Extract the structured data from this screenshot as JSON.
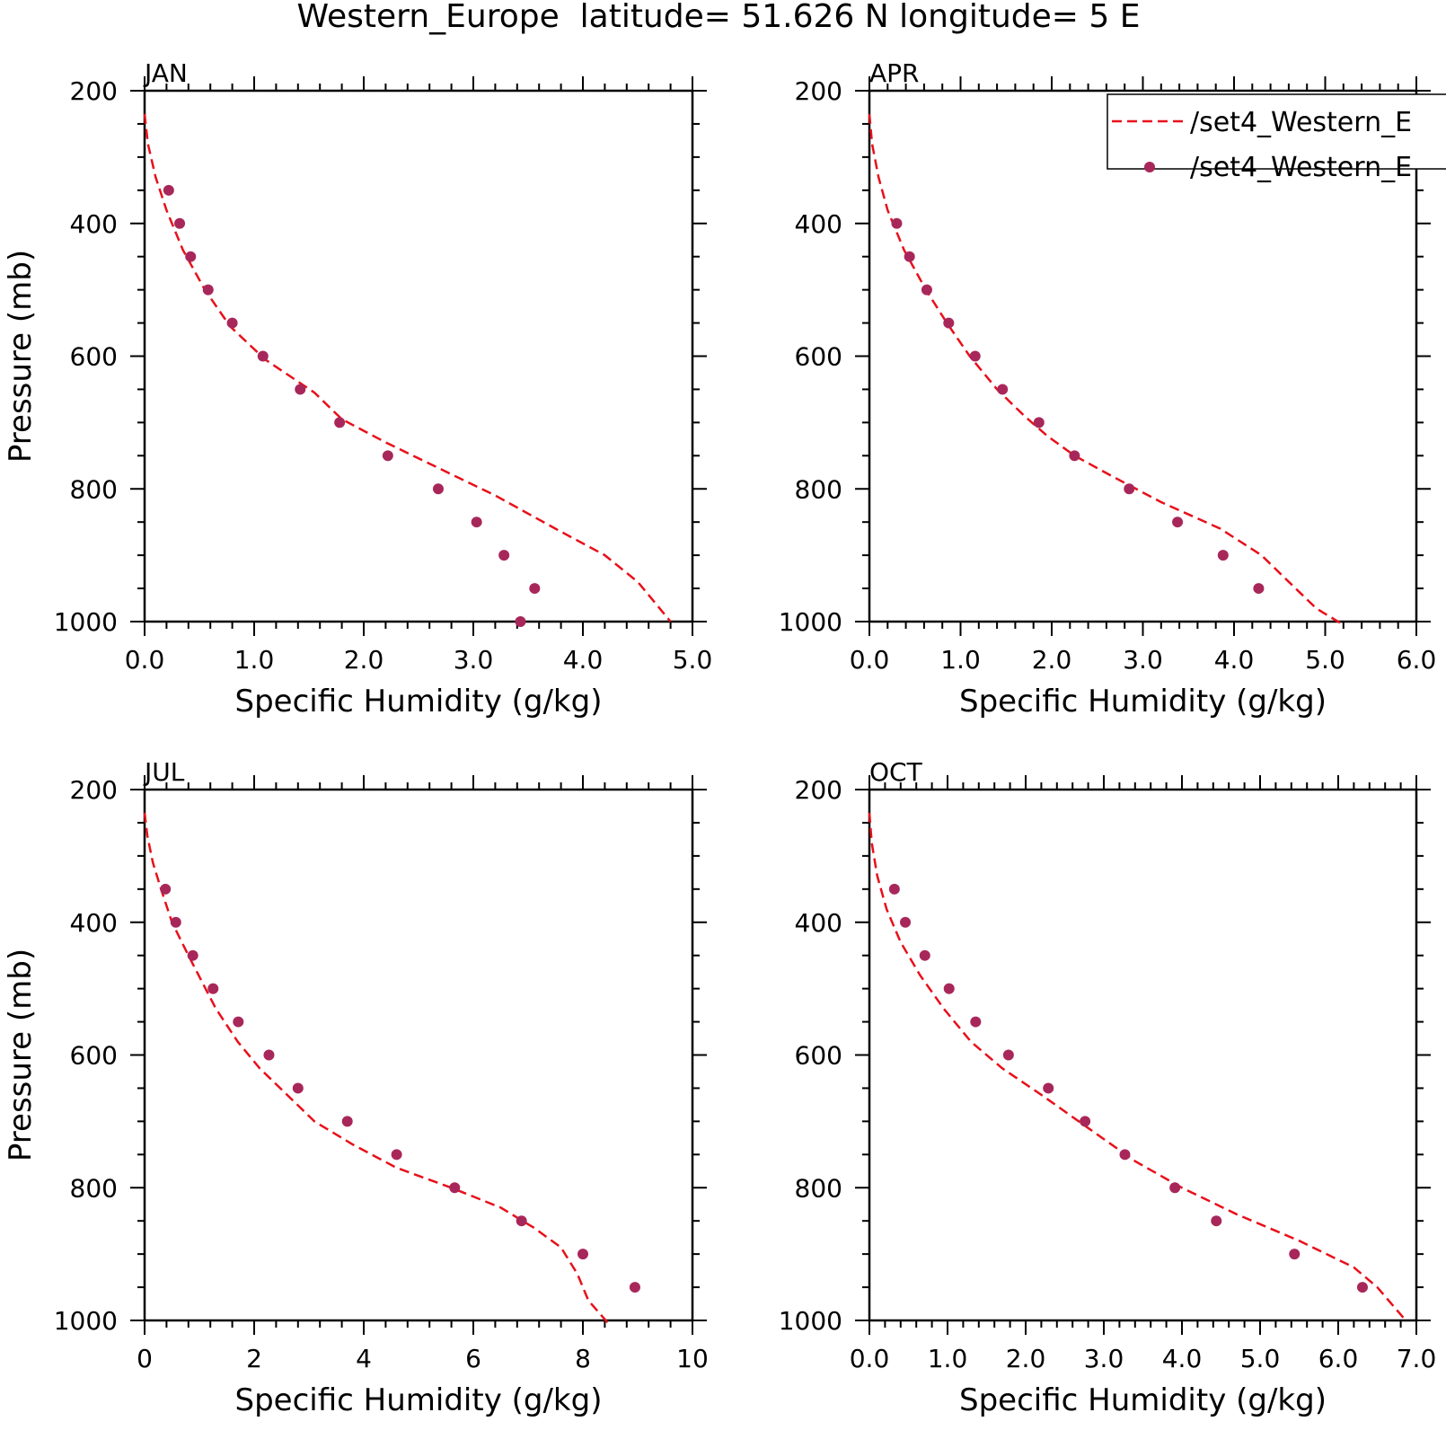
{
  "figure": {
    "title": "Western_Europe  latitude= 51.626 N longitude= 5 E"
  },
  "style": {
    "model_color": "#e8101a",
    "obs_color": "#a8275a"
  },
  "legend": {
    "entries": [
      "/set4_Western_E",
      "/set4_Western_E"
    ]
  },
  "chart_data": [
    {
      "type": "line",
      "label": "JAN",
      "xlabel": "Specific Humidity (g/kg)",
      "ylabel": "Pressure (mb)",
      "xlim": [
        0,
        5
      ],
      "ylim": [
        200,
        1000
      ],
      "x_ticks": [
        0,
        1,
        2,
        3,
        4,
        5
      ],
      "x_tick_labels": [
        "0.0",
        "1.0",
        "2.0",
        "3.0",
        "4.0",
        "5.0"
      ],
      "y_ticks": [
        200,
        400,
        600,
        800,
        1000
      ],
      "y_tick_labels": [
        "200",
        "400",
        "600",
        "800",
        "1000"
      ],
      "series": [
        {
          "style": "dashed-line",
          "x": [
            0.0,
            0.03,
            0.1,
            0.2,
            0.35,
            0.55,
            0.78,
            1.1,
            1.55,
            1.8,
            2.2,
            2.7,
            3.2,
            3.75,
            4.2,
            4.5,
            4.65,
            4.8
          ],
          "y": [
            235,
            280,
            330,
            380,
            440,
            500,
            555,
            605,
            655,
            695,
            730,
            770,
            810,
            860,
            900,
            940,
            970,
            1000
          ]
        },
        {
          "style": "markers",
          "x": [
            0.22,
            0.32,
            0.42,
            0.58,
            0.8,
            1.08,
            1.42,
            1.78,
            2.22,
            2.68,
            3.03,
            3.28,
            3.56,
            3.43
          ],
          "y": [
            350,
            400,
            450,
            500,
            550,
            600,
            650,
            700,
            750,
            800,
            850,
            900,
            950,
            1000
          ]
        }
      ],
      "legend_position": "none"
    },
    {
      "type": "line",
      "label": "APR",
      "xlabel": "Specific Humidity (g/kg)",
      "ylabel": "",
      "xlim": [
        0,
        6
      ],
      "ylim": [
        200,
        1000
      ],
      "x_ticks": [
        0,
        1,
        2,
        3,
        4,
        5,
        6
      ],
      "x_tick_labels": [
        "0.0",
        "1.0",
        "2.0",
        "3.0",
        "4.0",
        "5.0",
        "6.0"
      ],
      "y_ticks": [
        200,
        400,
        600,
        800,
        1000
      ],
      "y_tick_labels": [
        "200",
        "400",
        "600",
        "800",
        "1000"
      ],
      "series": [
        {
          "style": "dashed-line",
          "x": [
            0.0,
            0.03,
            0.1,
            0.2,
            0.38,
            0.62,
            0.85,
            1.1,
            1.4,
            1.7,
            1.95,
            2.25,
            2.65,
            3.2,
            3.85,
            4.3,
            4.6,
            4.9,
            5.2
          ],
          "y": [
            235,
            280,
            330,
            380,
            440,
            500,
            550,
            600,
            650,
            690,
            720,
            750,
            780,
            820,
            860,
            900,
            940,
            980,
            1005
          ]
        },
        {
          "style": "markers",
          "x": [
            0.3,
            0.44,
            0.63,
            0.87,
            1.16,
            1.46,
            1.86,
            2.25,
            2.85,
            3.38,
            3.88,
            4.27
          ],
          "y": [
            400,
            450,
            500,
            550,
            600,
            650,
            700,
            750,
            800,
            850,
            900,
            950
          ]
        }
      ],
      "legend_position": "top-right"
    },
    {
      "type": "line",
      "label": "JUL",
      "xlabel": "Specific Humidity (g/kg)",
      "ylabel": "Pressure (mb)",
      "xlim": [
        0,
        10
      ],
      "ylim": [
        200,
        1000
      ],
      "x_ticks": [
        0,
        2,
        4,
        6,
        8,
        10
      ],
      "x_tick_labels": [
        "0",
        "2",
        "4",
        "6",
        "8",
        "10"
      ],
      "y_ticks": [
        200,
        400,
        600,
        800,
        1000
      ],
      "y_tick_labels": [
        "200",
        "400",
        "600",
        "800",
        "1000"
      ],
      "series": [
        {
          "style": "dashed-line",
          "x": [
            0.0,
            0.05,
            0.15,
            0.3,
            0.5,
            0.8,
            1.3,
            1.7,
            2.1,
            2.6,
            3.1,
            3.8,
            4.6,
            5.6,
            6.5,
            7.1,
            7.6,
            7.9,
            8.1,
            8.45
          ],
          "y": [
            235,
            270,
            310,
            350,
            400,
            450,
            530,
            580,
            620,
            660,
            700,
            735,
            770,
            800,
            830,
            860,
            890,
            930,
            970,
            1003
          ]
        },
        {
          "style": "markers",
          "x": [
            0.38,
            0.57,
            0.88,
            1.25,
            1.71,
            2.27,
            2.8,
            3.7,
            4.6,
            5.66,
            6.88,
            8.0,
            8.95
          ],
          "y": [
            350,
            400,
            450,
            500,
            550,
            600,
            650,
            700,
            750,
            800,
            850,
            900,
            950
          ]
        }
      ],
      "legend_position": "none"
    },
    {
      "type": "line",
      "label": "OCT",
      "xlabel": "Specific Humidity (g/kg)",
      "ylabel": "",
      "xlim": [
        0,
        7
      ],
      "ylim": [
        200,
        1000
      ],
      "x_ticks": [
        0,
        1,
        2,
        3,
        4,
        5,
        6,
        7
      ],
      "x_tick_labels": [
        "0.0",
        "1.0",
        "2.0",
        "3.0",
        "4.0",
        "5.0",
        "6.0",
        "7.0"
      ],
      "y_ticks": [
        200,
        400,
        600,
        800,
        1000
      ],
      "y_tick_labels": [
        "200",
        "400",
        "600",
        "800",
        "1000"
      ],
      "series": [
        {
          "style": "dashed-line",
          "x": [
            0.0,
            0.03,
            0.1,
            0.22,
            0.4,
            0.65,
            0.95,
            1.3,
            1.7,
            2.2,
            2.8,
            3.4,
            4.0,
            4.7,
            5.5,
            6.2,
            6.5,
            6.85
          ],
          "y": [
            235,
            280,
            330,
            380,
            430,
            480,
            530,
            580,
            620,
            660,
            710,
            760,
            800,
            840,
            880,
            920,
            950,
            998
          ]
        },
        {
          "style": "markers",
          "x": [
            0.32,
            0.46,
            0.71,
            1.02,
            1.36,
            1.78,
            2.29,
            2.76,
            3.27,
            3.91,
            4.44,
            5.44,
            6.31
          ],
          "y": [
            350,
            400,
            450,
            500,
            550,
            600,
            650,
            700,
            750,
            800,
            850,
            900,
            950
          ]
        }
      ],
      "legend_position": "none"
    }
  ]
}
